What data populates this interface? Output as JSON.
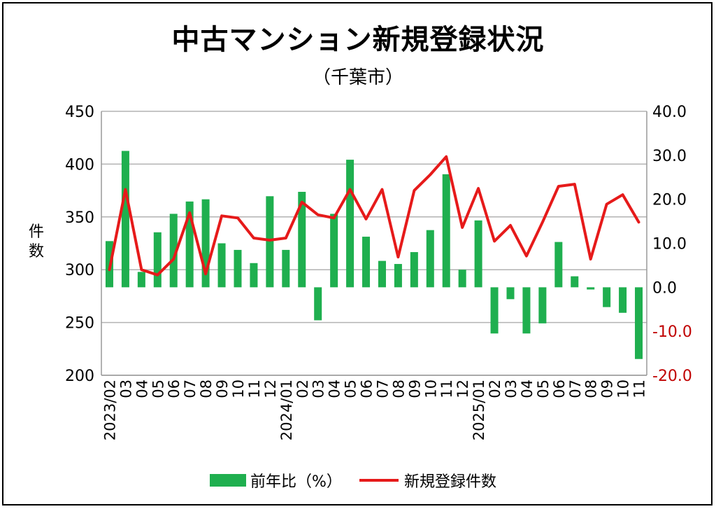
{
  "title": "中古マンション新規登録状況",
  "subtitle": "（千葉市）",
  "colors": {
    "bar": "#1faf4f",
    "line": "#e61a1a",
    "right_axis_negative": "#c00000",
    "grid": "#b3b3b3"
  },
  "chart_data": {
    "type": "bar+line",
    "title": "中古マンション新規登録状況",
    "subtitle": "（千葉市）",
    "y_left_label": "件数",
    "y_left_range": [
      200,
      450
    ],
    "y_left_ticks": [
      "200",
      "250",
      "300",
      "350",
      "400",
      "450"
    ],
    "y_right_range": [
      -20,
      40
    ],
    "y_right_ticks": [
      "-20.0",
      "-10.0",
      "0.0",
      "10.0",
      "20.0",
      "30.0",
      "40.0"
    ],
    "grid": true,
    "legend_position": "bottom",
    "categories": [
      "2023/02",
      "03",
      "04",
      "05",
      "06",
      "07",
      "08",
      "09",
      "10",
      "11",
      "12",
      "2024/01",
      "02",
      "03",
      "04",
      "05",
      "06",
      "07",
      "08",
      "09",
      "10",
      "11",
      "12",
      "2025/01",
      "02",
      "03",
      "04",
      "05",
      "06",
      "07",
      "08",
      "09",
      "10",
      "11"
    ],
    "series": [
      {
        "name": "前年比（%）",
        "type": "bar",
        "axis": "right",
        "values": [
          10.5,
          31.0,
          3.5,
          12.5,
          16.7,
          19.5,
          20.0,
          10.0,
          8.5,
          5.5,
          20.7,
          8.5,
          21.7,
          -7.5,
          16.7,
          29.0,
          11.5,
          6.0,
          5.3,
          8.0,
          13.0,
          25.7,
          4.0,
          15.2,
          -10.5,
          -2.7,
          -10.5,
          -8.2,
          10.3,
          2.5,
          -0.5,
          -4.5,
          -5.8,
          -16.3
        ]
      },
      {
        "name": "新規登録件数",
        "type": "line",
        "axis": "left",
        "values": [
          300,
          376,
          300,
          295,
          310,
          354,
          296,
          351,
          349,
          330,
          328,
          330,
          364,
          352,
          349,
          376,
          348,
          376,
          312,
          375,
          390,
          407,
          340,
          377,
          327,
          342,
          313,
          345,
          379,
          381,
          310,
          362,
          371,
          345
        ]
      }
    ]
  }
}
